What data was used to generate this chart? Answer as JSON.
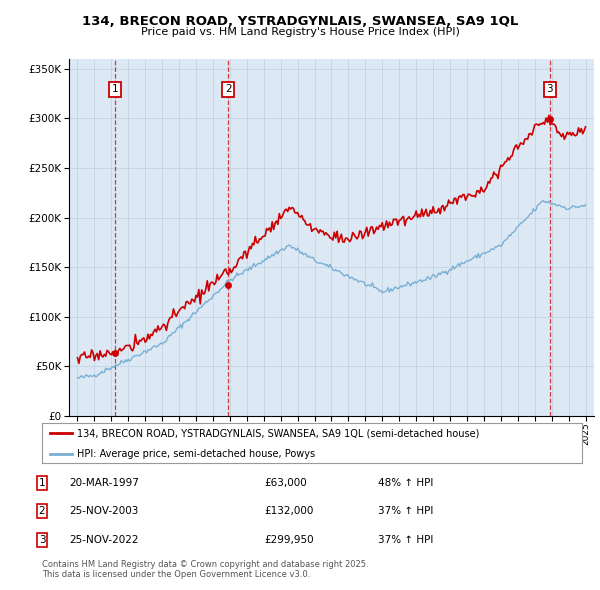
{
  "title_line1": "134, BRECON ROAD, YSTRADGYNLAIS, SWANSEA, SA9 1QL",
  "title_line2": "Price paid vs. HM Land Registry's House Price Index (HPI)",
  "legend_red": "134, BRECON ROAD, YSTRADGYNLAIS, SWANSEA, SA9 1QL (semi-detached house)",
  "legend_blue": "HPI: Average price, semi-detached house, Powys",
  "footer": "Contains HM Land Registry data © Crown copyright and database right 2025.\nThis data is licensed under the Open Government Licence v3.0.",
  "transactions": [
    {
      "num": 1,
      "date": "20-MAR-1997",
      "price": 63000,
      "hpi_change": "48% ↑ HPI",
      "year": 1997.22
    },
    {
      "num": 2,
      "date": "25-NOV-2003",
      "price": 132000,
      "hpi_change": "37% ↑ HPI",
      "year": 2003.9
    },
    {
      "num": 3,
      "date": "25-NOV-2022",
      "price": 299950,
      "hpi_change": "37% ↑ HPI",
      "year": 2022.9
    }
  ],
  "red_color": "#cc0000",
  "blue_color": "#7aafd4",
  "dashed_color": "#cc0000",
  "chart_bg_color": "#dce9f5",
  "plot_bg_color": "#ffffff",
  "grid_color": "#c0cfe0",
  "ylim": [
    0,
    360000
  ],
  "xlim_start": 1994.5,
  "xlim_end": 2025.5,
  "yticks": [
    0,
    50000,
    100000,
    150000,
    200000,
    250000,
    300000,
    350000
  ]
}
